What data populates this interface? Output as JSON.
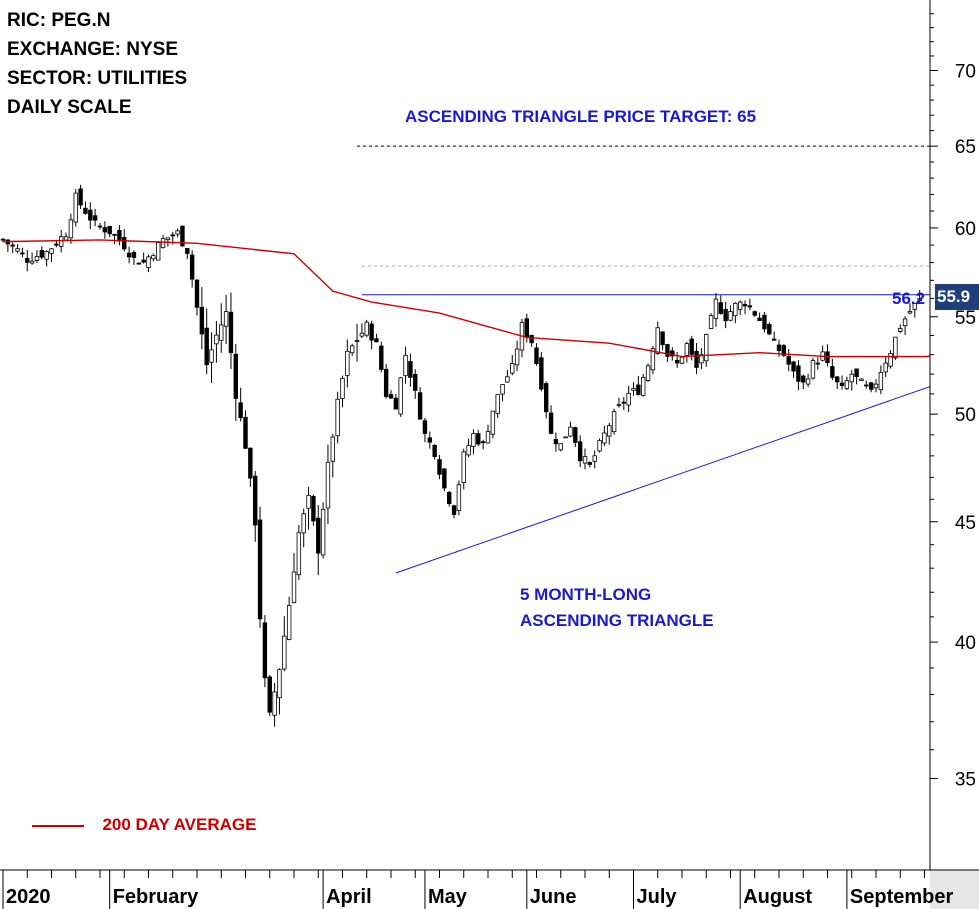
{
  "header": {
    "lines": [
      "RIC: PEG.N",
      "EXCHANGE: NYSE",
      "SECTOR: UTILITIES",
      "DAILY SCALE"
    ]
  },
  "annotations": {
    "target": "ASCENDING TRIANGLE PRICE TARGET: 65",
    "pattern_line1": "5 MONTH-LONG",
    "pattern_line2": "ASCENDING TRIANGLE",
    "resistance_label": "56.2",
    "last_price_label": "55.9",
    "legend_ma": "200 DAY AVERAGE"
  },
  "colors": {
    "candle": "#000000",
    "ma200": "#cc0000",
    "annotation": "#1a1acc",
    "last_price_badge": "#1f3f7a",
    "axis_bar": "#e6e6e6"
  },
  "chart_data": {
    "type": "candlestick",
    "y_scale": "log",
    "ylim": [
      32,
      75
    ],
    "y_ticks": [
      35,
      40,
      45,
      50,
      55,
      60,
      65,
      70
    ],
    "x_ticks": [
      "2020",
      "February",
      "April",
      "May",
      "June",
      "July",
      "August",
      "September"
    ],
    "x_tick_day": [
      0,
      22,
      66,
      87,
      108,
      130,
      152,
      174
    ],
    "total_days": 200,
    "series": [
      {
        "name": "200 DAY AVERAGE",
        "kind": "line",
        "points": [
          [
            0,
            59.2
          ],
          [
            20,
            59.3
          ],
          [
            40,
            59.1
          ],
          [
            60,
            58.5
          ],
          [
            68,
            56.4
          ],
          [
            76,
            55.8
          ],
          [
            90,
            55.2
          ],
          [
            108,
            53.9
          ],
          [
            125,
            53.6
          ],
          [
            140,
            52.9
          ],
          [
            156,
            53.1
          ],
          [
            170,
            52.9
          ],
          [
            190,
            52.9
          ],
          [
            197,
            53.0
          ]
        ]
      }
    ],
    "resistance": {
      "value": 56.2,
      "x_start": 74,
      "x_end": 195
    },
    "support_trend": [
      [
        81,
        42.8
      ],
      [
        202,
        52.3
      ]
    ],
    "price_target": {
      "value": 65,
      "x_start": 73,
      "x_end": 196
    },
    "prior_high_level": {
      "value": 57.8,
      "x_start": 74,
      "x_end": 196
    },
    "last_price": 55.9,
    "close_path": [
      [
        0,
        59.3
      ],
      [
        3,
        58.7
      ],
      [
        5,
        58.2
      ],
      [
        9,
        58.6
      ],
      [
        13,
        59.7
      ],
      [
        15,
        61.8
      ],
      [
        17,
        61.0
      ],
      [
        19,
        60.2
      ],
      [
        22,
        59.8
      ],
      [
        25,
        59.0
      ],
      [
        27,
        58.2
      ],
      [
        29,
        58.0
      ],
      [
        33,
        59.3
      ],
      [
        36,
        59.7
      ],
      [
        38,
        58.7
      ],
      [
        40,
        55.5
      ],
      [
        42,
        52.5
      ],
      [
        44,
        54.0
      ],
      [
        46,
        55.2
      ],
      [
        48,
        51.0
      ],
      [
        50,
        48.5
      ],
      [
        52,
        45.0
      ],
      [
        53,
        41.0
      ],
      [
        54,
        38.5
      ],
      [
        55,
        37.2
      ],
      [
        57,
        39.0
      ],
      [
        59,
        41.5
      ],
      [
        61,
        44.5
      ],
      [
        63,
        46.0
      ],
      [
        65,
        43.8
      ],
      [
        67,
        47.5
      ],
      [
        69,
        50.5
      ],
      [
        71,
        53.0
      ],
      [
        73,
        53.8
      ],
      [
        75,
        54.5
      ],
      [
        77,
        53.5
      ],
      [
        79,
        51.0
      ],
      [
        81,
        50.5
      ],
      [
        83,
        53.0
      ],
      [
        85,
        51.0
      ],
      [
        87,
        49.0
      ],
      [
        89,
        48.2
      ],
      [
        91,
        46.5
      ],
      [
        93,
        45.5
      ],
      [
        95,
        48.0
      ],
      [
        97,
        49.0
      ],
      [
        99,
        48.5
      ],
      [
        101,
        50.2
      ],
      [
        103,
        51.5
      ],
      [
        105,
        52.3
      ],
      [
        107,
        54.5
      ],
      [
        109,
        53.7
      ],
      [
        111,
        51.5
      ],
      [
        113,
        49.0
      ],
      [
        115,
        48.5
      ],
      [
        117,
        49.5
      ],
      [
        119,
        48.0
      ],
      [
        121,
        47.5
      ],
      [
        123,
        48.5
      ],
      [
        125,
        49.5
      ],
      [
        127,
        50.3
      ],
      [
        129,
        51.0
      ],
      [
        131,
        51.2
      ],
      [
        133,
        52.5
      ],
      [
        135,
        54.5
      ],
      [
        137,
        53.0
      ],
      [
        139,
        52.5
      ],
      [
        141,
        53.5
      ],
      [
        143,
        52.3
      ],
      [
        145,
        53.8
      ],
      [
        147,
        55.8
      ],
      [
        149,
        55.0
      ],
      [
        151,
        55.6
      ],
      [
        153,
        55.8
      ],
      [
        155,
        55.2
      ],
      [
        157,
        54.5
      ],
      [
        159,
        53.5
      ],
      [
        161,
        53.0
      ],
      [
        163,
        52.0
      ],
      [
        165,
        51.5
      ],
      [
        167,
        52.5
      ],
      [
        169,
        53.0
      ],
      [
        171,
        51.8
      ],
      [
        173,
        51.2
      ],
      [
        175,
        52.0
      ],
      [
        177,
        51.5
      ],
      [
        179,
        51.0
      ],
      [
        181,
        52.2
      ],
      [
        183,
        53.2
      ],
      [
        185,
        54.5
      ],
      [
        187,
        55.3
      ],
      [
        189,
        55.9
      ]
    ]
  }
}
